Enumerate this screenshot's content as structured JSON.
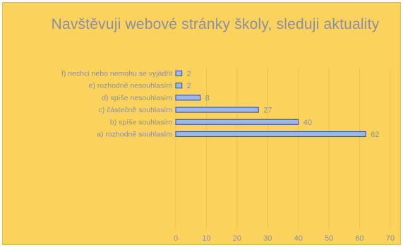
{
  "chart_data": {
    "type": "bar",
    "orientation": "horizontal",
    "title": "Navštěvuji webové stránky školy, sleduji aktuality",
    "categories": [
      "f) nechci nebo nemohu se   vyjádřit",
      "e) rozhodně nesouhlasím",
      "d) spíše nesouhlasím",
      "c) částečně souhlasím",
      "b) spíše souhlasím",
      "a) rozhodně souhlasím"
    ],
    "values": [
      2,
      2,
      8,
      27,
      40,
      62
    ],
    "value_labels": [
      "2",
      "2",
      "8",
      "27",
      "40",
      "62"
    ],
    "xlim": [
      0,
      70
    ],
    "x_ticks": [
      "0",
      "10",
      "20",
      "30",
      "40",
      "50",
      "60",
      "70"
    ],
    "grid": true,
    "legend": "none",
    "colors": {
      "background": "#fbd35c",
      "bar_fill": "#9db7ea",
      "bar_stroke": "#3f5fb4",
      "text": "#8a8fa3",
      "grid": "#f0c24a"
    }
  }
}
